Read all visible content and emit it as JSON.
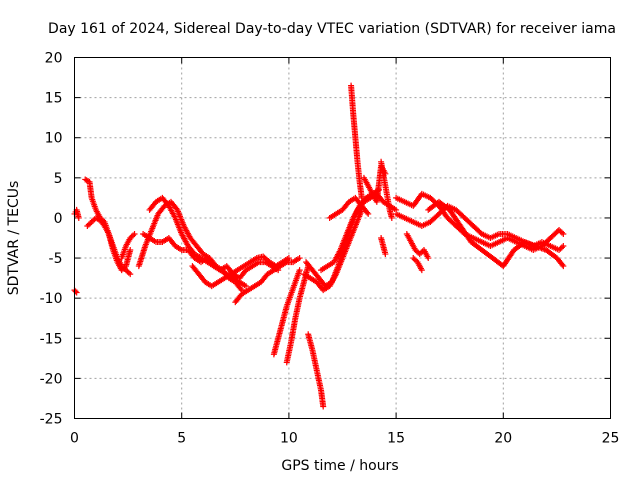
{
  "chart_data": {
    "type": "scatter",
    "title": "Day 161 of 2024, Sidereal Day-to-day VTEC variation (SDTVAR) for receiver iama",
    "xlabel": "GPS time / hours",
    "ylabel": "SDTVAR / TECUs",
    "xlim": [
      0,
      25
    ],
    "ylim": [
      -25,
      20
    ],
    "xticks": [
      0,
      5,
      10,
      15,
      20,
      25
    ],
    "yticks": [
      -25,
      -20,
      -15,
      -10,
      -5,
      0,
      5,
      10,
      15,
      20
    ],
    "grid": true,
    "marker": "+",
    "color": "#ff0000",
    "series": [
      {
        "name": "s1",
        "x": [
          0.0,
          0.1,
          0.2
        ],
        "y": [
          0.5,
          1.0,
          0.0
        ]
      },
      {
        "name": "s2",
        "x": [
          0.0,
          0.1
        ],
        "y": [
          -9.0,
          -9.3
        ]
      },
      {
        "name": "s3",
        "x": [
          0.5,
          0.7,
          0.8,
          1.0,
          1.2,
          1.4,
          1.6,
          1.8,
          2.0,
          2.2,
          2.4,
          2.6
        ],
        "y": [
          4.8,
          4.5,
          2.5,
          1.0,
          0.0,
          -0.5,
          -2.0,
          -3.5,
          -5.0,
          -6.0,
          -6.5,
          -7.0
        ]
      },
      {
        "name": "s4",
        "x": [
          0.6,
          0.8,
          1.0,
          1.2,
          1.4,
          1.6,
          1.8,
          2.0,
          2.2,
          2.4,
          2.6
        ],
        "y": [
          -1.0,
          -0.5,
          0.0,
          -0.3,
          -1.0,
          -2.0,
          -4.0,
          -5.5,
          -6.5,
          -6.0,
          -4.0
        ]
      },
      {
        "name": "s5",
        "x": [
          2.2,
          2.4,
          2.6,
          2.8
        ],
        "y": [
          -5.0,
          -3.5,
          -2.5,
          -2.0
        ]
      },
      {
        "name": "s6",
        "x": [
          3.0,
          3.3,
          3.6,
          3.9,
          4.2,
          4.5,
          4.8,
          5.1,
          5.4,
          5.7,
          6.0,
          6.3,
          6.6,
          6.9,
          7.2,
          7.5,
          7.8
        ],
        "y": [
          -6.0,
          -3.5,
          -1.5,
          0.5,
          1.5,
          2.0,
          1.0,
          -1.0,
          -2.5,
          -3.5,
          -4.5,
          -5.0,
          -6.0,
          -6.5,
          -7.5,
          -8.0,
          -9.0
        ]
      },
      {
        "name": "s7",
        "x": [
          3.5,
          3.8,
          4.1,
          4.4,
          4.7,
          5.0,
          5.3,
          5.6,
          5.9,
          6.2,
          6.5,
          6.8,
          7.1,
          7.4,
          7.7,
          8.0
        ],
        "y": [
          1.0,
          2.0,
          2.5,
          1.5,
          0.0,
          -2.0,
          -3.5,
          -4.5,
          -5.0,
          -5.5,
          -6.0,
          -6.5,
          -7.0,
          -7.5,
          -8.0,
          -8.5
        ]
      },
      {
        "name": "s8",
        "x": [
          3.2,
          3.5,
          3.8,
          4.1,
          4.4,
          4.7,
          5.0,
          5.3,
          5.6,
          5.9,
          6.2,
          6.5,
          6.8,
          7.1,
          7.4,
          7.7,
          8.0,
          8.3,
          8.6,
          8.9,
          9.2,
          9.5
        ],
        "y": [
          -2.0,
          -2.5,
          -3.0,
          -3.0,
          -2.5,
          -3.5,
          -4.0,
          -4.0,
          -5.0,
          -5.5,
          -5.0,
          -6.0,
          -6.5,
          -6.0,
          -7.0,
          -7.5,
          -6.5,
          -6.0,
          -5.5,
          -5.5,
          -6.0,
          -6.5
        ]
      },
      {
        "name": "s9",
        "x": [
          5.5,
          5.8,
          6.1,
          6.4,
          6.7,
          7.0,
          7.3,
          7.6,
          7.9,
          8.2,
          8.5,
          8.8,
          9.1,
          9.4,
          9.7,
          10.0
        ],
        "y": [
          -6.0,
          -7.0,
          -8.0,
          -8.5,
          -8.0,
          -7.5,
          -7.0,
          -6.5,
          -6.0,
          -5.5,
          -5.0,
          -4.8,
          -5.5,
          -6.0,
          -5.5,
          -5.0
        ]
      },
      {
        "name": "s10",
        "x": [
          7.5,
          7.8,
          8.1,
          8.4,
          8.7,
          9.0,
          9.3,
          9.6,
          9.9,
          10.2,
          10.5
        ],
        "y": [
          -10.5,
          -9.5,
          -9.0,
          -8.5,
          -8.0,
          -7.0,
          -6.5,
          -6.0,
          -5.5,
          -5.5,
          -5.0
        ]
      },
      {
        "name": "s11",
        "x": [
          9.3,
          9.5,
          9.7,
          9.9,
          10.1,
          10.3,
          10.5
        ],
        "y": [
          -17.0,
          -15.0,
          -13.0,
          -11.0,
          -9.5,
          -8.0,
          -6.5
        ]
      },
      {
        "name": "s12",
        "x": [
          9.9,
          10.1,
          10.3,
          10.5,
          10.7,
          10.9
        ],
        "y": [
          -18.0,
          -15.5,
          -12.5,
          -10.0,
          -8.0,
          -6.0
        ]
      },
      {
        "name": "s13",
        "x": [
          10.9,
          11.1,
          11.3,
          11.5,
          11.6
        ],
        "y": [
          -14.5,
          -16.5,
          -19.0,
          -21.5,
          -23.5
        ]
      },
      {
        "name": "s14",
        "x": [
          10.8,
          11.1,
          11.4,
          11.7,
          12.0,
          12.3,
          12.6,
          12.9,
          13.2,
          13.5,
          13.8,
          14.1,
          14.4,
          14.7,
          15.0
        ],
        "y": [
          -5.5,
          -6.5,
          -7.5,
          -8.5,
          -8.0,
          -6.0,
          -3.5,
          -1.0,
          1.0,
          2.0,
          2.5,
          3.0,
          2.0,
          1.5,
          1.0
        ]
      },
      {
        "name": "s15",
        "x": [
          10.7,
          11.0,
          11.3,
          11.6,
          11.9,
          12.2,
          12.5,
          12.8,
          13.1,
          13.4
        ],
        "y": [
          -7.0,
          -7.5,
          -8.0,
          -9.0,
          -8.5,
          -7.0,
          -5.0,
          -3.0,
          -1.0,
          1.0
        ]
      },
      {
        "name": "s16",
        "x": [
          11.5,
          11.8,
          12.1,
          12.4,
          12.7,
          13.0,
          13.3,
          13.6,
          13.9,
          14.2
        ],
        "y": [
          -6.5,
          -6.0,
          -5.5,
          -4.0,
          -2.0,
          0.0,
          1.5,
          2.5,
          3.0,
          3.5
        ]
      },
      {
        "name": "s17",
        "x": [
          11.9,
          12.2,
          12.5,
          12.8,
          13.1,
          13.4,
          13.7
        ],
        "y": [
          0.0,
          0.5,
          1.0,
          2.0,
          2.5,
          1.5,
          0.5
        ]
      },
      {
        "name": "s18",
        "x": [
          12.9,
          13.0,
          13.1,
          13.2,
          13.3,
          13.4
        ],
        "y": [
          16.5,
          13.0,
          10.0,
          7.0,
          4.5,
          2.5
        ]
      },
      {
        "name": "s19",
        "x": [
          13.5,
          13.7,
          13.9,
          14.1,
          14.3,
          14.5
        ],
        "y": [
          5.0,
          4.0,
          3.0,
          2.0,
          6.5,
          5.5
        ]
      },
      {
        "name": "s20",
        "x": [
          14.3,
          14.4,
          14.5,
          14.6,
          14.7,
          14.8
        ],
        "y": [
          7.0,
          5.5,
          4.0,
          2.5,
          1.0,
          0.0
        ]
      },
      {
        "name": "s21",
        "x": [
          14.3,
          14.4,
          14.5
        ],
        "y": [
          -2.5,
          -3.5,
          -4.5
        ]
      },
      {
        "name": "s22",
        "x": [
          15.0,
          15.4,
          15.8,
          16.2,
          16.6,
          17.0,
          17.4,
          17.8,
          18.2,
          18.6,
          19.0,
          19.4,
          19.8,
          20.2,
          20.6,
          21.0,
          21.4,
          21.8,
          22.2,
          22.6,
          22.8
        ],
        "y": [
          2.5,
          2.0,
          1.5,
          3.0,
          2.5,
          1.5,
          0.0,
          -1.0,
          -2.0,
          -2.5,
          -3.0,
          -3.5,
          -3.0,
          -2.5,
          -3.0,
          -3.5,
          -4.0,
          -3.5,
          -2.5,
          -1.5,
          -2.0
        ]
      },
      {
        "name": "s23",
        "x": [
          15.0,
          15.4,
          15.8,
          16.2,
          16.6,
          17.0,
          17.4,
          17.8,
          18.2,
          18.6,
          19.0,
          19.4,
          19.8,
          20.2,
          20.6,
          21.0,
          21.4,
          21.8,
          22.2,
          22.6,
          22.8
        ],
        "y": [
          0.5,
          0.0,
          -0.5,
          -1.0,
          -0.5,
          0.5,
          1.5,
          1.0,
          0.0,
          -1.0,
          -2.0,
          -2.5,
          -2.0,
          -2.0,
          -2.5,
          -3.0,
          -3.5,
          -3.0,
          -3.5,
          -4.0,
          -3.5
        ]
      },
      {
        "name": "s24",
        "x": [
          16.5,
          17.0,
          17.5,
          18.0,
          18.5,
          19.0,
          19.5,
          20.0,
          20.5,
          21.0,
          21.5,
          22.0,
          22.5,
          22.8
        ],
        "y": [
          1.0,
          2.0,
          1.0,
          -1.0,
          -3.0,
          -4.0,
          -5.0,
          -6.0,
          -4.0,
          -3.0,
          -3.5,
          -4.0,
          -5.0,
          -6.0
        ]
      },
      {
        "name": "s25",
        "x": [
          15.5,
          15.7,
          15.9,
          16.1,
          16.3,
          16.5
        ],
        "y": [
          -2.0,
          -3.0,
          -4.0,
          -4.5,
          -4.0,
          -5.0
        ]
      },
      {
        "name": "s26",
        "x": [
          15.8,
          16.0,
          16.2
        ],
        "y": [
          -5.0,
          -5.5,
          -6.5
        ]
      }
    ]
  }
}
